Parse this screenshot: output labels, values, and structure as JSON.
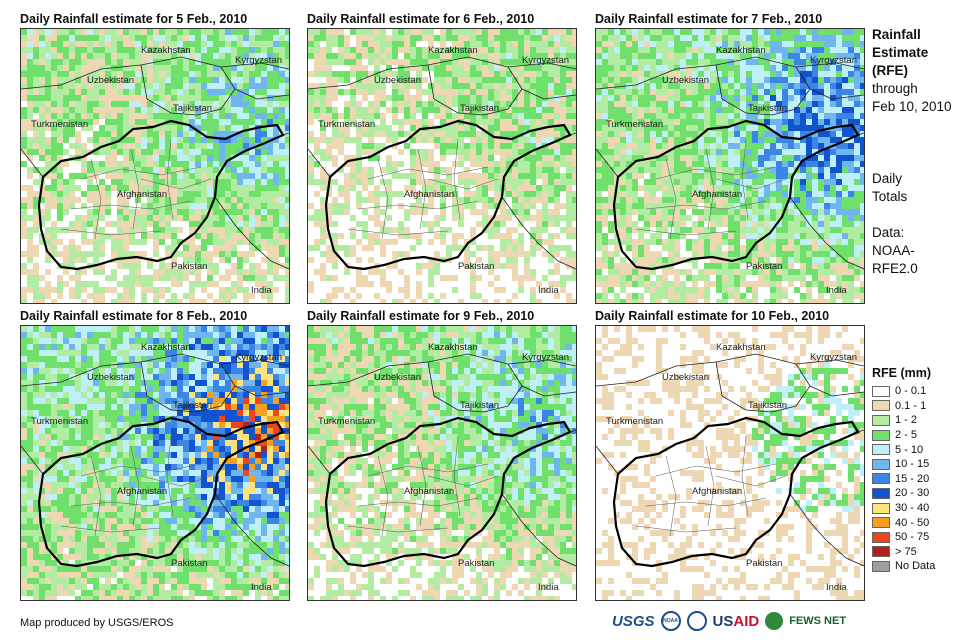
{
  "panels": [
    {
      "title": "Daily Rainfall estimate for 5 Feb., 2010",
      "level": 2
    },
    {
      "title": "Daily Rainfall estimate for 6 Feb., 2010",
      "level": 1
    },
    {
      "title": "Daily Rainfall estimate for 7 Feb., 2010",
      "level": 3
    },
    {
      "title": "Daily Rainfall estimate for 8 Feb., 2010",
      "level": 4
    },
    {
      "title": "Daily Rainfall estimate for 9 Feb., 2010",
      "level": 2
    },
    {
      "title": "Daily Rainfall estimate for 10 Feb., 2010",
      "level": 0
    }
  ],
  "map_labels": {
    "kazakhstan": "Kazakhstan",
    "kyrgyzstan": "Kyrgyzstan",
    "uzbekistan": "Uzbekistan",
    "tajikistan": "Tajikistan",
    "turkmenistan": "Turkmenistan",
    "afghanistan": "Afghanistan",
    "pakistan": "Pakistan",
    "india": "India"
  },
  "side_info": {
    "line1": "Rainfall",
    "line2": "Estimate",
    "line3": "(RFE)",
    "line4": "through",
    "line5": "Feb 10, 2010",
    "line6": "Daily",
    "line7": "Totals",
    "line8": "Data:",
    "line9": "NOAA-",
    "line10": "RFE2.0"
  },
  "legend": {
    "title": "RFE (mm)",
    "items": [
      {
        "label": "0 - 0.1",
        "color": "#ffffff"
      },
      {
        "label": "0.1 - 1",
        "color": "#eed8b4"
      },
      {
        "label": "1 - 2",
        "color": "#b2eba2"
      },
      {
        "label": "2 - 5",
        "color": "#6fe06b"
      },
      {
        "label": "5 - 10",
        "color": "#bfeff7"
      },
      {
        "label": "10 - 15",
        "color": "#6fb5ee"
      },
      {
        "label": "15 - 20",
        "color": "#3a85e6"
      },
      {
        "label": "20 - 30",
        "color": "#1253cf"
      },
      {
        "label": "30 - 40",
        "color": "#fde37a"
      },
      {
        "label": "40 - 50",
        "color": "#f5a11f"
      },
      {
        "label": "50 - 75",
        "color": "#f0451c"
      },
      {
        "label": "> 75",
        "color": "#b2211c"
      },
      {
        "label": "No Data",
        "color": "#9e9e9e"
      }
    ]
  },
  "footer": {
    "credit": "Map produced by USGS/EROS",
    "logo_usgs": "USGS",
    "logo_noaa": "NOAA",
    "logo_usaid_a": "US",
    "logo_usaid_b": "AID",
    "logo_fews": "FEWS NET"
  }
}
